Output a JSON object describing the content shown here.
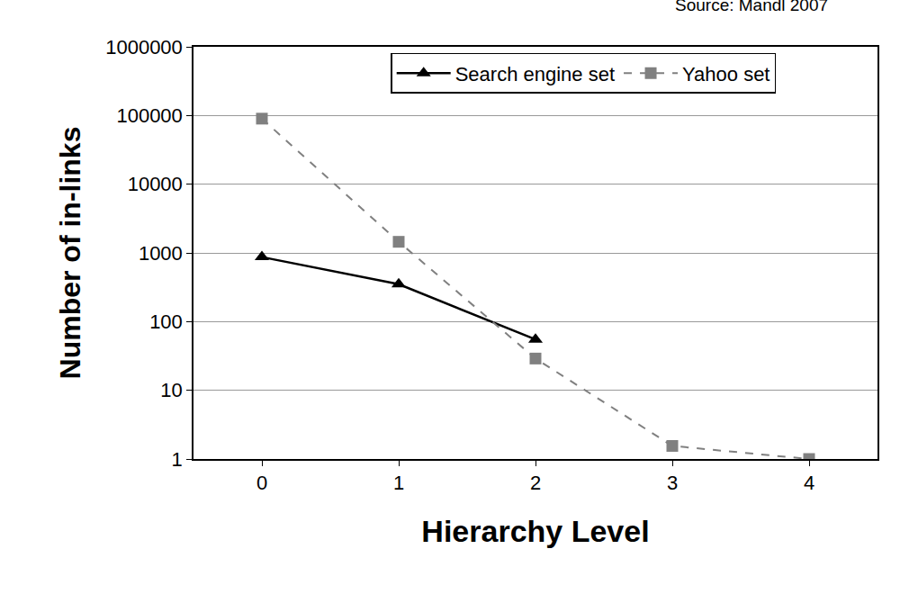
{
  "chart_data": {
    "type": "line",
    "annotations": [
      "Source: Mandl 2007"
    ],
    "x_label": "Hierarchy Level",
    "y_label": "Number of in-links",
    "x": [
      0,
      1,
      2,
      3,
      4
    ],
    "series": [
      {
        "name": "Search engine set",
        "color": "#000000",
        "marker": "triangle",
        "line_style": "solid",
        "values": [
          870,
          350,
          55,
          null,
          null
        ]
      },
      {
        "name": "Yahoo set",
        "color": "#808080",
        "marker": "square",
        "line_style": "dashed",
        "values": [
          90000,
          1450,
          29,
          1.55,
          1
        ]
      }
    ],
    "xlim": [
      -0.5,
      4.5
    ],
    "xticks": [
      0,
      1,
      2,
      3,
      4
    ],
    "ylim": [
      1,
      1000000
    ],
    "yticks": [
      1,
      10,
      100,
      1000,
      10000,
      100000,
      1000000
    ],
    "log": "y",
    "grid": true,
    "legend": "top"
  }
}
